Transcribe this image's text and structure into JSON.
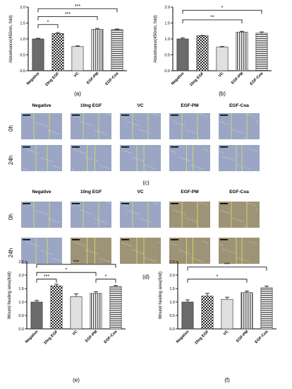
{
  "colors": {
    "bar_dark": "#6b6b6b",
    "bar_checker": "#2a2a2a",
    "bar_light": "#e0e0e0",
    "wound_blue": "#9aa6c4",
    "wound_tan": "#9d9477",
    "line_yellow": "#e8e05a"
  },
  "micro": {
    "top_labels": [
      "Negative",
      "10ng EGF",
      "VC",
      "EGF-PM",
      "EGF-Coa"
    ],
    "row_labels": [
      "0h",
      "24h"
    ],
    "panel_c_label": "(c)",
    "panel_d_label": "(d)"
  },
  "chart_data": [
    {
      "id": "a",
      "panel_label": "(a)",
      "type": "bar",
      "categories": [
        "Negative",
        "10ng EGF",
        "VC",
        "EGF-PM",
        "EGF-Coa"
      ],
      "values": [
        1.0,
        1.17,
        0.76,
        1.3,
        1.29
      ],
      "errors": [
        0.02,
        0.03,
        0.02,
        0.03,
        0.02
      ],
      "patterns": [
        "dark",
        "checker",
        "light",
        "vstripe",
        "hstripe"
      ],
      "ylabel": "Absorbance(450nm, fold)",
      "ylim": [
        0,
        2.0
      ],
      "yticks": [
        "0.0",
        "0.5",
        "1.0",
        "1.5",
        "2.0"
      ],
      "yticks_val": [
        0,
        0.5,
        1.0,
        1.5,
        2.0
      ],
      "sig": [
        {
          "from": 0,
          "to": 1,
          "text": "*",
          "level": 1.45
        },
        {
          "from": 0,
          "to": 3,
          "text": "***",
          "level": 1.7
        },
        {
          "from": 0,
          "to": 4,
          "text": "***",
          "level": 1.95
        }
      ]
    },
    {
      "id": "b",
      "panel_label": "(b)",
      "type": "bar",
      "categories": [
        "Negative",
        "10ng EGF",
        "VC",
        "EGF-PM",
        "EGF-Coa"
      ],
      "values": [
        1.0,
        1.1,
        0.74,
        1.21,
        1.18
      ],
      "errors": [
        0.03,
        0.01,
        0.02,
        0.03,
        0.04
      ],
      "patterns": [
        "dark",
        "checker",
        "light",
        "vstripe",
        "hstripe"
      ],
      "ylabel": "Absorbance(450nm, fold)",
      "ylim": [
        0,
        2.0
      ],
      "yticks": [
        "0.0",
        "0.5",
        "1.0",
        "1.5",
        "2.0"
      ],
      "yticks_val": [
        0,
        0.5,
        1.0,
        1.5,
        2.0
      ],
      "sig": [
        {
          "from": 0,
          "to": 3,
          "text": "**",
          "level": 1.6
        },
        {
          "from": 0,
          "to": 4,
          "text": "*",
          "level": 1.9
        }
      ]
    },
    {
      "id": "e",
      "panel_label": "(e)",
      "type": "bar",
      "categories": [
        "Negative",
        "10ng EGF",
        "VC",
        "EGF-PM",
        "EGF-Coa"
      ],
      "values": [
        1.0,
        1.6,
        1.2,
        1.32,
        1.57
      ],
      "errors": [
        0.06,
        0.06,
        0.1,
        0.06,
        0.05
      ],
      "patterns": [
        "dark",
        "checker",
        "light",
        "vstripe",
        "hstripe"
      ],
      "ylabel": "Wound healing area(fold)",
      "ylim": [
        0,
        2.5
      ],
      "yticks": [
        "0.0",
        "0.5",
        "1.0",
        "1.5",
        "2.0",
        "2.5"
      ],
      "yticks_val": [
        0,
        0.5,
        1.0,
        1.5,
        2.0,
        2.5
      ],
      "sig": [
        {
          "from": 0,
          "to": 1,
          "text": "***",
          "level": 1.85
        },
        {
          "from": 0,
          "to": 3,
          "text": "*",
          "level": 2.1
        },
        {
          "from": 3,
          "to": 4,
          "text": "*",
          "level": 1.85
        },
        {
          "from": 0,
          "to": 4,
          "text": "***",
          "level": 2.4
        }
      ]
    },
    {
      "id": "f",
      "panel_label": "(f)",
      "type": "bar",
      "categories": [
        "Negative",
        "10ng EGF",
        "VC",
        "EGF-PM",
        "EGF-Coa"
      ],
      "values": [
        1.0,
        1.22,
        1.1,
        1.35,
        1.53
      ],
      "errors": [
        0.08,
        0.1,
        0.08,
        0.06,
        0.06
      ],
      "patterns": [
        "dark",
        "checker",
        "light",
        "vstripe",
        "hstripe"
      ],
      "ylabel": "Wound healing area(fold)",
      "ylim": [
        0,
        2.5
      ],
      "yticks": [
        "0.0",
        "0.5",
        "1.0",
        "1.5",
        "2.0",
        "2.5"
      ],
      "yticks_val": [
        0,
        0.5,
        1.0,
        1.5,
        2.0,
        2.5
      ],
      "sig": [
        {
          "from": 0,
          "to": 3,
          "text": "*",
          "level": 1.85
        },
        {
          "from": 0,
          "to": 4,
          "text": "***",
          "level": 2.3
        }
      ]
    }
  ]
}
